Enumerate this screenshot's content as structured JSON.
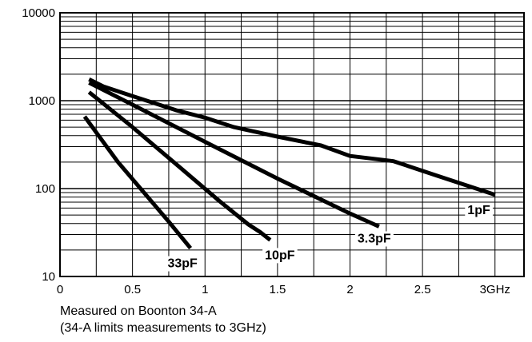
{
  "chart_data": {
    "type": "line",
    "y_scale": "log",
    "ylim": [
      10,
      10000
    ],
    "xlim": [
      0,
      3.2
    ],
    "grid": true,
    "x_ticks": [
      {
        "value": 0,
        "label": "0"
      },
      {
        "value": 0.5,
        "label": "0.5"
      },
      {
        "value": 1,
        "label": "1"
      },
      {
        "value": 1.5,
        "label": "1.5"
      },
      {
        "value": 2,
        "label": "2"
      },
      {
        "value": 2.5,
        "label": "2.5"
      },
      {
        "value": 3,
        "label": "3GHz"
      }
    ],
    "y_ticks": [
      {
        "value": 10,
        "label": "10"
      },
      {
        "value": 100,
        "label": "100"
      },
      {
        "value": 1000,
        "label": "1000"
      },
      {
        "value": 10000,
        "label": "10000"
      }
    ],
    "series": [
      {
        "name": "1pF",
        "x": [
          0.2,
          0.3,
          0.5,
          0.8,
          1.0,
          1.2,
          1.5,
          1.8,
          2.0,
          2.3,
          2.6,
          3.0
        ],
        "y": [
          1750,
          1450,
          1130,
          780,
          640,
          500,
          390,
          310,
          235,
          205,
          140,
          85
        ]
      },
      {
        "name": "3.3pF",
        "x": [
          0.2,
          0.5,
          1.0,
          1.5,
          2.0,
          2.2
        ],
        "y": [
          1600,
          900,
          340,
          130,
          52,
          37
        ]
      },
      {
        "name": "10pF",
        "x": [
          0.2,
          0.5,
          0.8,
          1.1,
          1.3,
          1.38,
          1.45
        ],
        "y": [
          1250,
          500,
          190,
          72,
          39,
          32,
          26
        ]
      },
      {
        "name": "33pF",
        "x": [
          0.17,
          0.4,
          0.6,
          0.75,
          0.9
        ],
        "y": [
          660,
          200,
          82,
          42,
          21
        ]
      }
    ]
  },
  "notes": {
    "line1": "Measured on Boonton 34-A",
    "line2": "(34-A limits measurements to 3GHz)"
  }
}
